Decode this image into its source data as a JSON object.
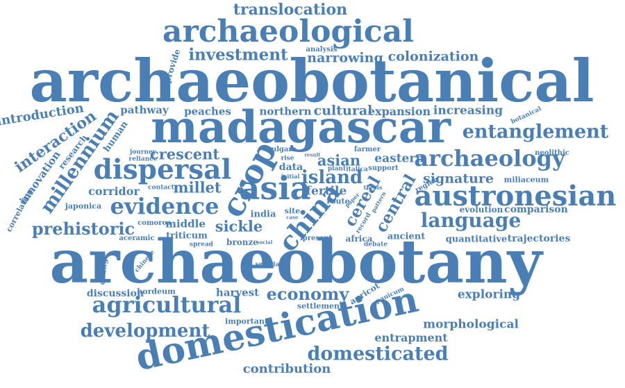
{
  "colors": {
    "word": "#4a7fb5",
    "background": "#ffffff"
  },
  "words": [
    "translocation",
    "archaeological",
    "investment",
    "analysis",
    "narrowing",
    "colonization",
    "provide",
    "archaeobotanical",
    "introduction",
    "pathway",
    "peaches",
    "northern",
    "cultural",
    "expansion",
    "increasing",
    "botanical",
    "madagascar",
    "entanglement",
    "interaction",
    "millennium",
    "research",
    "human",
    "innovation",
    "crescent",
    "journey",
    "reliance",
    "crop",
    "vulgare",
    "result",
    "farmer",
    "neolithic",
    "dispersal",
    "asian",
    "eastern",
    "archaeology",
    "data",
    "plant",
    "italica",
    "support",
    "rise",
    "island",
    "signature",
    "initial",
    "millet",
    "miliaceum",
    "corridor",
    "contact",
    "asia",
    "fertile",
    "cereal",
    "central",
    "austronesian",
    "correlation",
    "japonica",
    "evidence",
    "india",
    "route",
    "thesis",
    "paper",
    "pattern",
    "region",
    "evolution",
    "comparison",
    "comoros",
    "site",
    "case",
    "record",
    "prehistoric",
    "middle",
    "sickle",
    "china",
    "language",
    "triticum",
    "aceramic",
    "spread",
    "bronze",
    "social",
    "present",
    "africa",
    "debate",
    "ancient",
    "quantitative",
    "trajectories",
    "archaeobotany",
    "change",
    "chinese",
    "setaria",
    "discussion",
    "harvest",
    "economy",
    "apricot",
    "panicum",
    "exploring",
    "hordeum",
    "agricultural",
    "settlement",
    "important",
    "development",
    "morphological",
    "entrapment",
    "domestication",
    "domesticated",
    "contribution"
  ]
}
